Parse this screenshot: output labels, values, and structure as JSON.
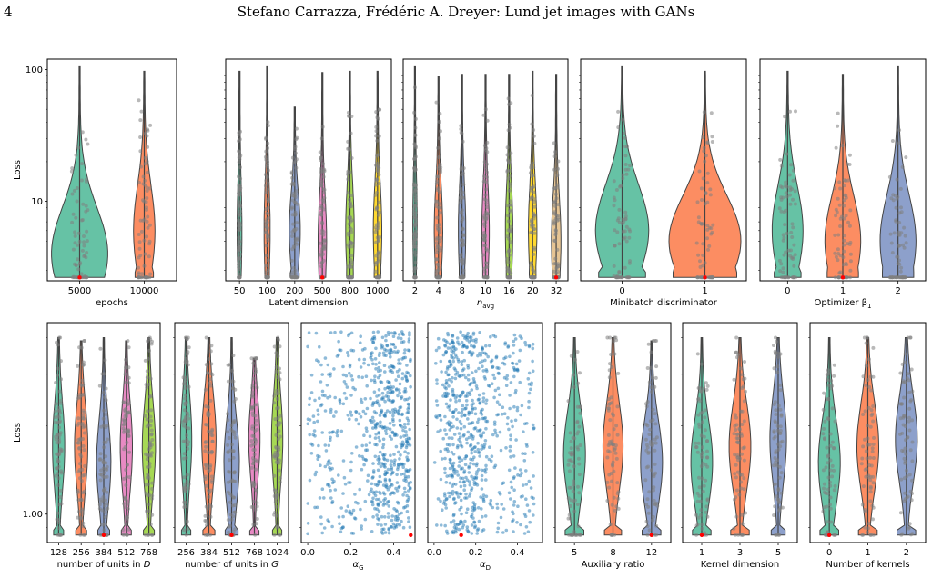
{
  "header": {
    "page_number": "4",
    "running_title": "Stefano Carrazza, Frédéric A. Dreyer: Lund jet images with GANs"
  },
  "colors": {
    "palette": [
      "#66c2a5",
      "#fc8d62",
      "#8da0cb",
      "#e78ac3",
      "#a6d854",
      "#ffd92f",
      "#e5c494"
    ],
    "jitter_points": "#808080",
    "scatter_points": "#1f77b4",
    "best_marker": "#ff0000"
  },
  "chart_data": [
    {
      "type": "violin",
      "row": 1,
      "ylabel": "Loss",
      "yscale": "log",
      "ylim": [
        2.5,
        120
      ],
      "yticks": [
        "10",
        "100"
      ],
      "xlabel": "epochs",
      "categories": [
        "5000",
        "10000"
      ],
      "wide": [
        0.95,
        0.35
      ],
      "top_value": [
        105,
        97
      ],
      "median": [
        4,
        6
      ],
      "best_category": "5000"
    },
    {
      "type": "violin",
      "row": 1,
      "ylabel": "",
      "yscale": "log",
      "ylim": [
        2.5,
        120
      ],
      "yticks": [],
      "xlabel": "Latent dimension",
      "categories": [
        "50",
        "100",
        "200",
        "500",
        "800",
        "1000"
      ],
      "wide": [
        0.15,
        0.2,
        0.4,
        0.3,
        0.3,
        0.3
      ],
      "top_value": [
        97,
        105,
        52,
        95,
        97,
        97
      ],
      "median": [
        6,
        6,
        6,
        5,
        6,
        6
      ],
      "best_category": "500"
    },
    {
      "type": "violin",
      "row": 1,
      "ylabel": "",
      "yscale": "log",
      "ylim": [
        2.5,
        120
      ],
      "yticks": [],
      "xlabel": "n_avg",
      "categories": [
        "2",
        "4",
        "8",
        "10",
        "16",
        "20",
        "32"
      ],
      "wide": [
        0.15,
        0.35,
        0.3,
        0.3,
        0.3,
        0.35,
        0.4
      ],
      "top_value": [
        105,
        88,
        92,
        92,
        92,
        97,
        92
      ],
      "median": [
        7,
        6,
        6,
        6,
        6,
        6,
        5
      ],
      "best_category": "32"
    },
    {
      "type": "violin",
      "row": 1,
      "ylabel": "",
      "yscale": "log",
      "ylim": [
        2.5,
        120
      ],
      "yticks": [],
      "xlabel": "Minibatch discriminator",
      "categories": [
        "0",
        "1"
      ],
      "wide": [
        0.7,
        0.95
      ],
      "top_value": [
        105,
        97
      ],
      "median": [
        6,
        5
      ],
      "best_category": "1"
    },
    {
      "type": "violin",
      "row": 1,
      "ylabel": "",
      "yscale": "log",
      "ylim": [
        2.5,
        120
      ],
      "yticks": [],
      "xlabel": "Optimizer β1",
      "categories": [
        "0",
        "1",
        "2"
      ],
      "wide": [
        0.6,
        0.7,
        0.7
      ],
      "top_value": [
        97,
        92,
        105
      ],
      "median": [
        6,
        5,
        5
      ],
      "best_category": "1"
    },
    {
      "type": "violin",
      "row": 2,
      "ylabel": "Loss",
      "yscale": "log",
      "ylim": [
        0.8,
        4.5
      ],
      "yticks": [
        "1.00"
      ],
      "xlabel": "number of units in D",
      "categories": [
        "128",
        "256",
        "384",
        "512",
        "768"
      ],
      "wide": [
        0.55,
        0.6,
        0.65,
        0.55,
        0.6
      ],
      "top_value": [
        4,
        3.9,
        4,
        3.9,
        4
      ],
      "median": [
        1.7,
        1.7,
        1.5,
        1.7,
        1.7
      ],
      "best_category": "384"
    },
    {
      "type": "violin",
      "row": 2,
      "ylabel": "",
      "yscale": "log",
      "ylim": [
        0.8,
        4.5
      ],
      "yticks": [],
      "xlabel": "number of units in G",
      "categories": [
        "256",
        "384",
        "512",
        "768",
        "1024"
      ],
      "wide": [
        0.5,
        0.65,
        0.7,
        0.5,
        0.5
      ],
      "top_value": [
        4,
        4,
        4,
        3.4,
        4
      ],
      "median": [
        1.8,
        1.8,
        1.5,
        1.8,
        1.8
      ],
      "best_category": "512"
    },
    {
      "type": "scatter",
      "row": 2,
      "ylabel": "",
      "yscale": "log",
      "ylim": [
        0.8,
        4.5
      ],
      "xlabel": "α_G",
      "xlim": [
        -0.03,
        0.5
      ],
      "xticks": [
        "0.0",
        "0.2",
        "0.4"
      ],
      "skew": "right",
      "best_x": 0.48
    },
    {
      "type": "scatter",
      "row": 2,
      "ylabel": "",
      "yscale": "log",
      "ylim": [
        0.8,
        4.5
      ],
      "xlabel": "α_D",
      "xlim": [
        -0.03,
        0.52
      ],
      "xticks": [
        "0.0",
        "0.2",
        "0.4"
      ],
      "skew": "left",
      "best_x": 0.13
    },
    {
      "type": "violin",
      "row": 2,
      "ylabel": "",
      "yscale": "log",
      "ylim": [
        0.8,
        4.5
      ],
      "yticks": [],
      "xlabel": "Auxiliary ratio",
      "categories": [
        "5",
        "8",
        "12"
      ],
      "wide": [
        0.6,
        0.55,
        0.6
      ],
      "top_value": [
        4,
        4,
        3.9
      ],
      "median": [
        1.6,
        1.7,
        1.5
      ],
      "best_category": "12"
    },
    {
      "type": "violin",
      "row": 2,
      "ylabel": "",
      "yscale": "log",
      "ylim": [
        0.8,
        4.5
      ],
      "yticks": [],
      "xlabel": "Kernel dimension",
      "categories": [
        "1",
        "3",
        "5"
      ],
      "wide": [
        0.6,
        0.6,
        0.45
      ],
      "top_value": [
        4,
        4,
        4
      ],
      "median": [
        1.5,
        1.7,
        1.8
      ],
      "best_category": "1"
    },
    {
      "type": "violin",
      "row": 2,
      "ylabel": "",
      "yscale": "log",
      "ylim": [
        0.8,
        4.5
      ],
      "yticks": [],
      "xlabel": "Number of kernels",
      "categories": [
        "0",
        "1",
        "2"
      ],
      "wide": [
        0.6,
        0.6,
        0.6
      ],
      "top_value": [
        4,
        4,
        4
      ],
      "median": [
        1.5,
        1.7,
        1.8
      ],
      "best_category": "0"
    }
  ]
}
